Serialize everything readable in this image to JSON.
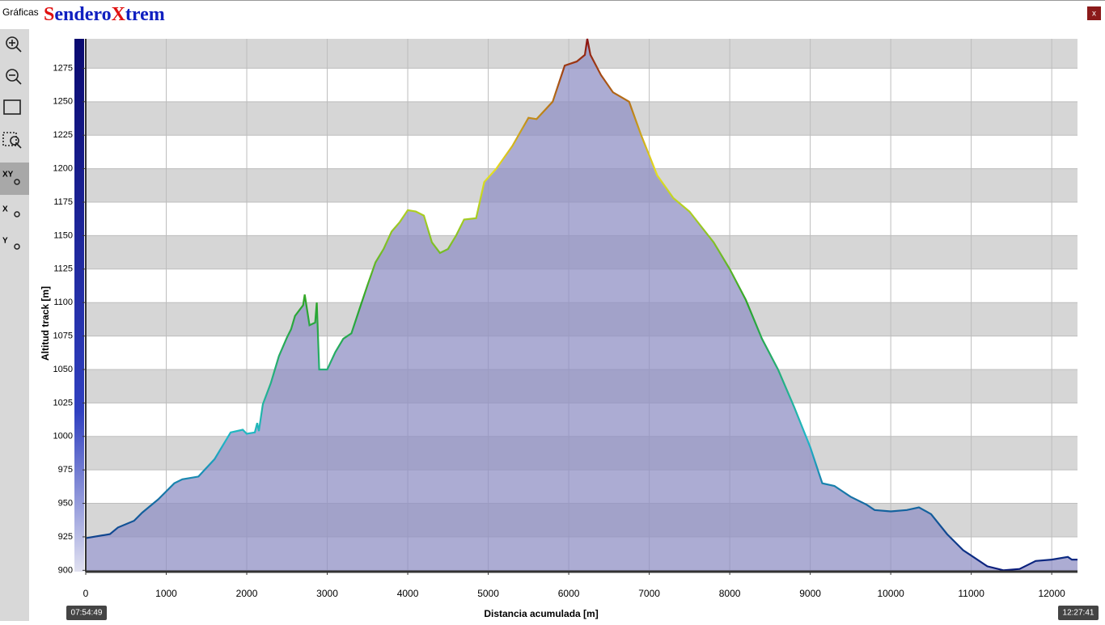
{
  "window": {
    "title": "Gráficas",
    "logo": [
      "S",
      "endero",
      "X",
      "trem"
    ],
    "close": "x"
  },
  "times": {
    "start": "07:54:49",
    "end": "12:27:41"
  },
  "toolbar": [
    "XY",
    "X",
    "Y"
  ],
  "chart_data": {
    "type": "area",
    "x_label": "Distancia acumulada [m]",
    "y_label": "Altitud track [m]",
    "x": [
      0,
      300,
      400,
      600,
      700,
      900,
      1100,
      1200,
      1400,
      1600,
      1800,
      1950,
      2000,
      2100,
      2130,
      2150,
      2200,
      2300,
      2400,
      2500,
      2550,
      2600,
      2700,
      2720,
      2780,
      2850,
      2870,
      2900,
      3000,
      3100,
      3200,
      3300,
      3400,
      3500,
      3600,
      3700,
      3800,
      3900,
      4000,
      4100,
      4200,
      4300,
      4400,
      4500,
      4600,
      4700,
      4850,
      4950,
      5100,
      5300,
      5500,
      5600,
      5800,
      5950,
      6100,
      6200,
      6230,
      6270,
      6400,
      6550,
      6750,
      6900,
      7100,
      7300,
      7500,
      7800,
      8000,
      8200,
      8400,
      8600,
      8800,
      9000,
      9150,
      9300,
      9500,
      9700,
      9800,
      10000,
      10200,
      10350,
      10500,
      10700,
      10900,
      11000,
      11200,
      11400,
      11600,
      11800,
      12000,
      12200,
      12250,
      12320
    ],
    "series": [
      {
        "name": "Altitud",
        "color": "#9090c4",
        "values": [
          924,
          927,
          932,
          937,
          943,
          953,
          965,
          968,
          970,
          983,
          1003,
          1005,
          1002,
          1003,
          1010,
          1004,
          1024,
          1040,
          1060,
          1074,
          1080,
          1090,
          1098,
          1106,
          1083,
          1085,
          1100,
          1050,
          1050,
          1063,
          1073,
          1077,
          1095,
          1113,
          1130,
          1140,
          1153,
          1160,
          1169,
          1168,
          1165,
          1145,
          1137,
          1140,
          1150,
          1162,
          1163,
          1190,
          1200,
          1217,
          1238,
          1237,
          1250,
          1277,
          1280,
          1285,
          1297,
          1285,
          1270,
          1257,
          1250,
          1225,
          1195,
          1178,
          1168,
          1145,
          1125,
          1102,
          1073,
          1050,
          1022,
          992,
          965,
          963,
          955,
          949,
          945,
          944,
          945,
          947,
          942,
          927,
          915,
          911,
          903,
          900,
          901,
          907,
          908,
          910,
          908,
          908
        ]
      }
    ],
    "line_colorscale": [
      "#0a1a7a",
      "#20b8c8",
      "#2aa52a",
      "#e6e020",
      "#8b1010"
    ],
    "xlim": [
      0,
      12320
    ],
    "ylim": [
      899,
      1297
    ],
    "xticks": [
      0,
      1000,
      2000,
      3000,
      4000,
      5000,
      6000,
      7000,
      8000,
      9000,
      10000,
      11000,
      12000
    ],
    "yticks": [
      900,
      925,
      950,
      975,
      1000,
      1025,
      1050,
      1075,
      1100,
      1125,
      1150,
      1175,
      1200,
      1225,
      1250,
      1275
    ],
    "grid": true
  }
}
